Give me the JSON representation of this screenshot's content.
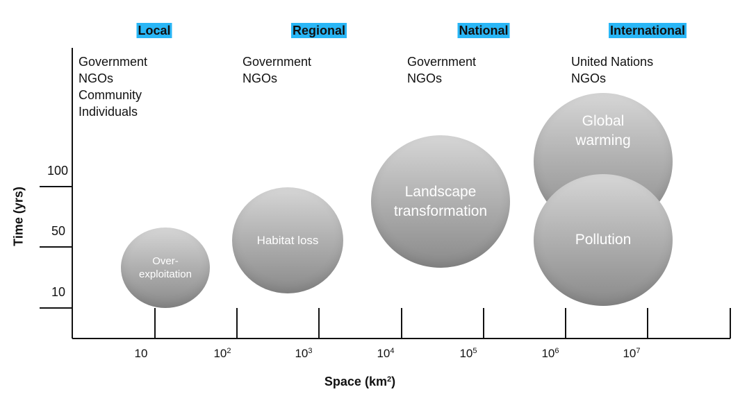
{
  "scales": [
    {
      "name": "Local",
      "color": "#29b6f6"
    },
    {
      "name": "Regional",
      "color": "#29b6f6"
    },
    {
      "name": "National",
      "color": "#29b6f6"
    },
    {
      "name": "International",
      "color": "#29b6f6"
    }
  ],
  "actors": [
    [
      "Government",
      "NGOs",
      "Community",
      "Individuals"
    ],
    [
      "Government",
      "NGOs"
    ],
    [
      "Government",
      "NGOs"
    ],
    [
      "United Nations",
      "NGOs"
    ]
  ],
  "y_axis": {
    "title": "Time (yrs)",
    "ticks": [
      "100",
      "50",
      "10"
    ]
  },
  "x_axis": {
    "title": "Space (km",
    "title_exp": "2",
    "title_suffix": ")",
    "ticks": [
      {
        "base": "10",
        "exp": ""
      },
      {
        "base": "10",
        "exp": "2"
      },
      {
        "base": "10",
        "exp": "3"
      },
      {
        "base": "10",
        "exp": "4"
      },
      {
        "base": "10",
        "exp": "5"
      },
      {
        "base": "10",
        "exp": "6"
      },
      {
        "base": "10",
        "exp": "7"
      }
    ]
  },
  "bubbles": [
    {
      "id": "over-exploitation",
      "label": "Over-\nexploitation"
    },
    {
      "id": "habitat-loss",
      "label": "Habitat loss"
    },
    {
      "id": "landscape-transformation",
      "label": "Landscape\ntransformation"
    },
    {
      "id": "global-warming",
      "label": "Global\nwarming"
    },
    {
      "id": "pollution",
      "label": "Pollution"
    }
  ]
}
